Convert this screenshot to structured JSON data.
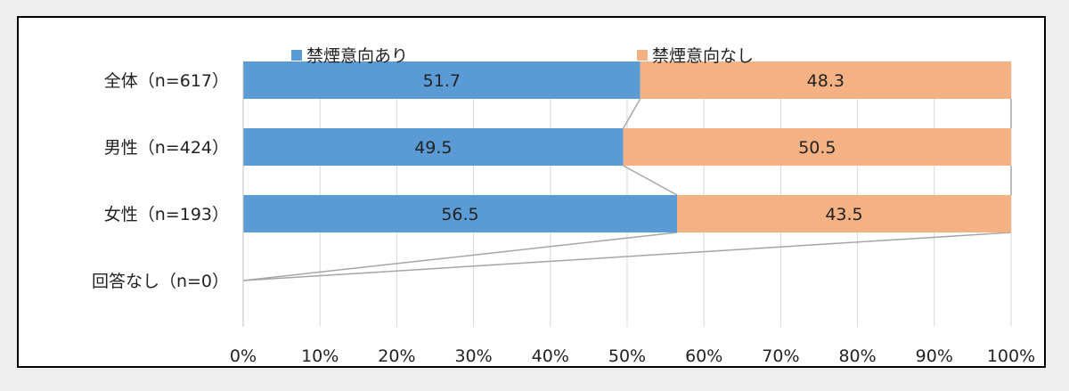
{
  "chart_data": {
    "type": "bar",
    "orientation": "horizontal",
    "stacked": true,
    "percent_stacked": true,
    "categories": [
      "全体（n=617）",
      "男性（n=424）",
      "女性（n=193）",
      "回答なし（n=0）"
    ],
    "series": [
      {
        "name": "禁煙意向あり",
        "values": [
          51.7,
          49.5,
          56.5,
          0
        ],
        "labels": [
          "51.7",
          "49.5",
          "56.5",
          ""
        ],
        "color": "#5b9bd5"
      },
      {
        "name": "禁煙意向なし",
        "values": [
          48.3,
          50.5,
          43.5,
          0
        ],
        "labels": [
          "48.3",
          "50.5",
          "43.5",
          ""
        ],
        "color": "#f4b183"
      }
    ],
    "x_ticks": [
      "0%",
      "10%",
      "20%",
      "30%",
      "40%",
      "50%",
      "60%",
      "70%",
      "80%",
      "90%",
      "100%"
    ],
    "xlim": [
      0,
      100
    ],
    "grid": true,
    "series_lines": true,
    "legend_position": "top"
  }
}
